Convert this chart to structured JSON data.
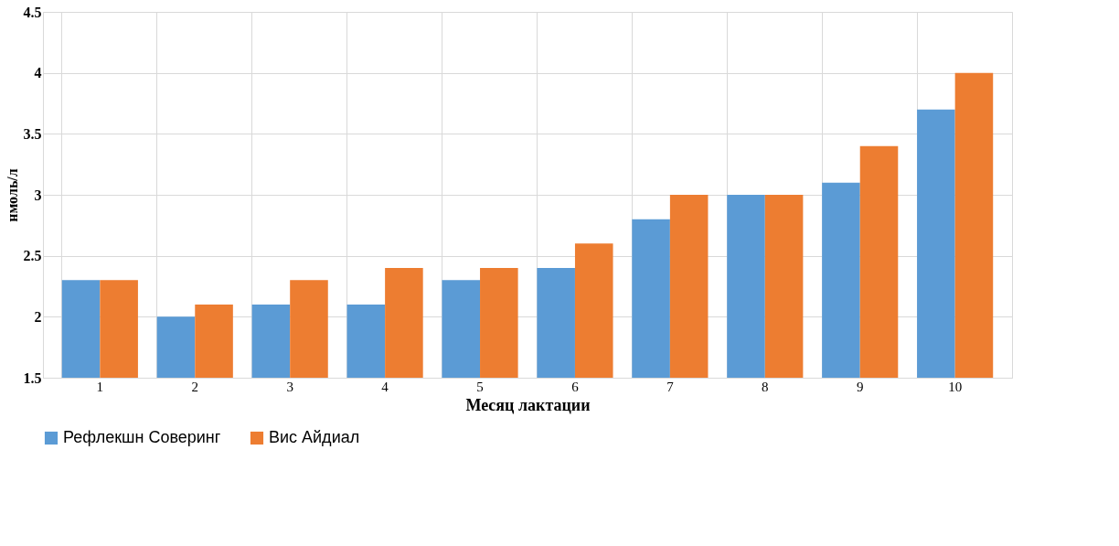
{
  "chart_data": {
    "type": "bar",
    "xlabel": "Месяц лактации",
    "ylabel": "нмоль/л",
    "categories": [
      "1",
      "2",
      "3",
      "4",
      "5",
      "6",
      "7",
      "8",
      "9",
      "10"
    ],
    "series": [
      {
        "name": "Рефлекшн Соверинг",
        "color": "#5b9bd5",
        "values": [
          2.3,
          2.0,
          2.1,
          2.1,
          2.3,
          2.4,
          2.8,
          3.0,
          3.1,
          3.7
        ]
      },
      {
        "name": "Вис Айдиал",
        "color": "#ed7d31",
        "values": [
          2.3,
          2.1,
          2.3,
          2.4,
          2.4,
          2.6,
          3.0,
          3.0,
          3.4,
          4.0
        ]
      }
    ],
    "ylim": [
      1.5,
      4.5
    ],
    "yticks": [
      1.5,
      2,
      2.5,
      3,
      3.5,
      4,
      4.5
    ],
    "grid": true,
    "legend": "bottom"
  }
}
